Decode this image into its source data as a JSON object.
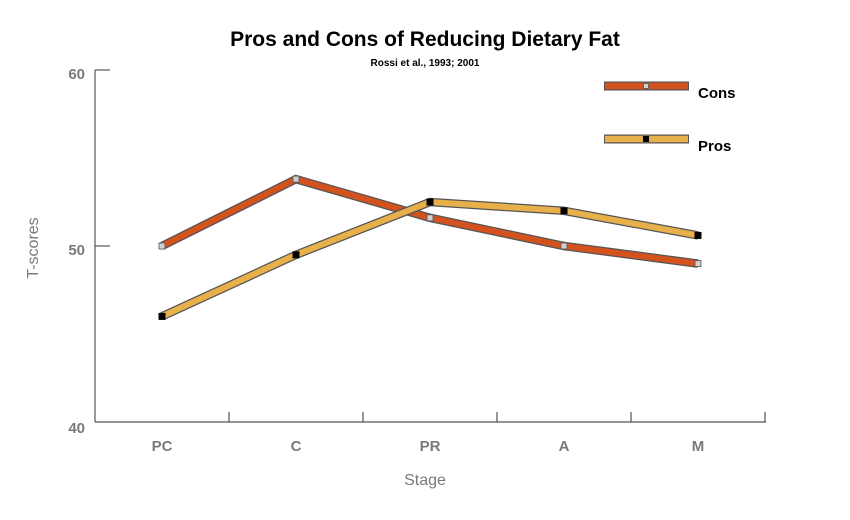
{
  "chart_data": {
    "type": "line",
    "title": "Pros and Cons of Reducing Dietary Fat",
    "subtitle": "Rossi et al., 1993; 2001",
    "xlabel": "Stage",
    "ylabel": "T-scores",
    "categories": [
      "PC",
      "C",
      "PR",
      "A",
      "M"
    ],
    "ylim": [
      40,
      60
    ],
    "yticks": [
      "40",
      "50",
      "60"
    ],
    "grid": false,
    "legend_position": "top-right",
    "series": [
      {
        "name": "Cons",
        "values": [
          50.0,
          53.8,
          51.6,
          50.0,
          49.0
        ],
        "color": "#d4521e",
        "marker_color": "#d0d0d0"
      },
      {
        "name": "Pros",
        "values": [
          46.0,
          49.5,
          52.5,
          52.0,
          50.6
        ],
        "color": "#e8b04a",
        "marker_color": "#000000"
      }
    ]
  }
}
